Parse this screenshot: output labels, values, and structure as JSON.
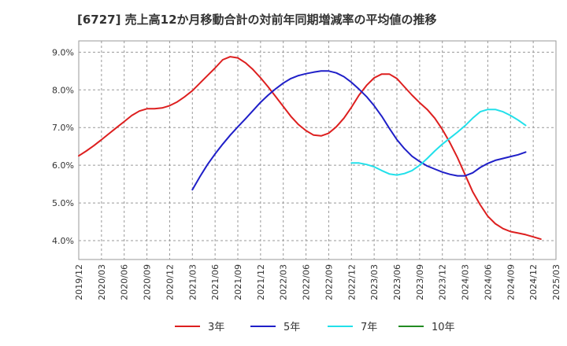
{
  "chart_data": {
    "type": "line",
    "title": "[6727]  売上高12か月移動合計の対前年同期増減率の平均値の推移",
    "xlabel": "",
    "ylabel": "",
    "x_ticks": [
      "2019/12",
      "2020/03",
      "2020/06",
      "2020/09",
      "2020/12",
      "2021/03",
      "2021/06",
      "2021/09",
      "2021/12",
      "2022/03",
      "2022/06",
      "2022/09",
      "2022/12",
      "2023/03",
      "2023/06",
      "2023/09",
      "2023/12",
      "2024/03",
      "2024/06",
      "2024/09",
      "2024/12",
      "2025/03"
    ],
    "y_ticks": [
      "4.0%",
      "5.0%",
      "6.0%",
      "7.0%",
      "8.0%",
      "9.0%"
    ],
    "y_tick_values": [
      4.0,
      5.0,
      6.0,
      7.0,
      8.0,
      9.0
    ],
    "ylim": [
      3.5,
      9.3
    ],
    "grid": true,
    "legend_position": "bottom",
    "series": [
      {
        "name": "3年",
        "color": "#dd1f1f",
        "points": [
          [
            "2019/12",
            6.25
          ],
          [
            "2020/01",
            6.38
          ],
          [
            "2020/02",
            6.52
          ],
          [
            "2020/03",
            6.68
          ],
          [
            "2020/04",
            6.84
          ],
          [
            "2020/05",
            7.0
          ],
          [
            "2020/06",
            7.16
          ],
          [
            "2020/07",
            7.32
          ],
          [
            "2020/08",
            7.44
          ],
          [
            "2020/09",
            7.5
          ],
          [
            "2020/10",
            7.5
          ],
          [
            "2020/11",
            7.52
          ],
          [
            "2020/12",
            7.58
          ],
          [
            "2021/01",
            7.68
          ],
          [
            "2021/02",
            7.82
          ],
          [
            "2021/03",
            7.98
          ],
          [
            "2021/04",
            8.18
          ],
          [
            "2021/05",
            8.38
          ],
          [
            "2021/06",
            8.58
          ],
          [
            "2021/07",
            8.8
          ],
          [
            "2021/08",
            8.88
          ],
          [
            "2021/09",
            8.85
          ],
          [
            "2021/10",
            8.72
          ],
          [
            "2021/11",
            8.54
          ],
          [
            "2021/12",
            8.32
          ],
          [
            "2022/01",
            8.08
          ],
          [
            "2022/02",
            7.82
          ],
          [
            "2022/03",
            7.56
          ],
          [
            "2022/04",
            7.3
          ],
          [
            "2022/05",
            7.08
          ],
          [
            "2022/06",
            6.92
          ],
          [
            "2022/07",
            6.8
          ],
          [
            "2022/08",
            6.78
          ],
          [
            "2022/09",
            6.85
          ],
          [
            "2022/10",
            7.02
          ],
          [
            "2022/11",
            7.25
          ],
          [
            "2022/12",
            7.54
          ],
          [
            "2023/01",
            7.86
          ],
          [
            "2023/02",
            8.12
          ],
          [
            "2023/03",
            8.32
          ],
          [
            "2023/04",
            8.42
          ],
          [
            "2023/05",
            8.42
          ],
          [
            "2023/06",
            8.3
          ],
          [
            "2023/07",
            8.08
          ],
          [
            "2023/08",
            7.86
          ],
          [
            "2023/09",
            7.66
          ],
          [
            "2023/10",
            7.48
          ],
          [
            "2023/11",
            7.25
          ],
          [
            "2023/12",
            6.95
          ],
          [
            "2024/01",
            6.6
          ],
          [
            "2024/02",
            6.2
          ],
          [
            "2024/03",
            5.75
          ],
          [
            "2024/04",
            5.3
          ],
          [
            "2024/05",
            4.95
          ],
          [
            "2024/06",
            4.65
          ],
          [
            "2024/07",
            4.45
          ],
          [
            "2024/08",
            4.32
          ],
          [
            "2024/09",
            4.24
          ],
          [
            "2024/10",
            4.2
          ],
          [
            "2024/11",
            4.16
          ],
          [
            "2024/12",
            4.1
          ],
          [
            "2025/01",
            4.04
          ]
        ]
      },
      {
        "name": "5年",
        "color": "#1f1fc8",
        "points": [
          [
            "2021/03",
            5.35
          ],
          [
            "2021/04",
            5.7
          ],
          [
            "2021/05",
            6.02
          ],
          [
            "2021/06",
            6.3
          ],
          [
            "2021/07",
            6.56
          ],
          [
            "2021/08",
            6.8
          ],
          [
            "2021/09",
            7.02
          ],
          [
            "2021/10",
            7.23
          ],
          [
            "2021/11",
            7.45
          ],
          [
            "2021/12",
            7.67
          ],
          [
            "2022/01",
            7.86
          ],
          [
            "2022/02",
            8.03
          ],
          [
            "2022/03",
            8.18
          ],
          [
            "2022/04",
            8.3
          ],
          [
            "2022/05",
            8.38
          ],
          [
            "2022/06",
            8.43
          ],
          [
            "2022/07",
            8.47
          ],
          [
            "2022/08",
            8.5
          ],
          [
            "2022/09",
            8.5
          ],
          [
            "2022/10",
            8.45
          ],
          [
            "2022/11",
            8.35
          ],
          [
            "2022/12",
            8.2
          ],
          [
            "2023/01",
            8.02
          ],
          [
            "2023/02",
            7.82
          ],
          [
            "2023/03",
            7.58
          ],
          [
            "2023/04",
            7.3
          ],
          [
            "2023/05",
            6.98
          ],
          [
            "2023/06",
            6.68
          ],
          [
            "2023/07",
            6.44
          ],
          [
            "2023/08",
            6.24
          ],
          [
            "2023/09",
            6.1
          ],
          [
            "2023/10",
            5.98
          ],
          [
            "2023/11",
            5.9
          ],
          [
            "2023/12",
            5.82
          ],
          [
            "2024/01",
            5.76
          ],
          [
            "2024/02",
            5.72
          ],
          [
            "2024/03",
            5.72
          ],
          [
            "2024/04",
            5.8
          ],
          [
            "2024/05",
            5.94
          ],
          [
            "2024/06",
            6.05
          ],
          [
            "2024/07",
            6.13
          ],
          [
            "2024/08",
            6.18
          ],
          [
            "2024/09",
            6.23
          ],
          [
            "2024/10",
            6.28
          ],
          [
            "2024/11",
            6.35
          ]
        ]
      },
      {
        "name": "7年",
        "color": "#22e0ea",
        "points": [
          [
            "2022/12",
            6.06
          ],
          [
            "2023/01",
            6.06
          ],
          [
            "2023/02",
            6.02
          ],
          [
            "2023/03",
            5.96
          ],
          [
            "2023/04",
            5.86
          ],
          [
            "2023/05",
            5.77
          ],
          [
            "2023/06",
            5.74
          ],
          [
            "2023/07",
            5.78
          ],
          [
            "2023/08",
            5.86
          ],
          [
            "2023/09",
            6.0
          ],
          [
            "2023/10",
            6.18
          ],
          [
            "2023/11",
            6.38
          ],
          [
            "2023/12",
            6.56
          ],
          [
            "2024/01",
            6.72
          ],
          [
            "2024/02",
            6.88
          ],
          [
            "2024/03",
            7.05
          ],
          [
            "2024/04",
            7.25
          ],
          [
            "2024/05",
            7.42
          ],
          [
            "2024/06",
            7.48
          ],
          [
            "2024/07",
            7.48
          ],
          [
            "2024/08",
            7.42
          ],
          [
            "2024/09",
            7.32
          ],
          [
            "2024/10",
            7.2
          ],
          [
            "2024/11",
            7.06
          ]
        ]
      },
      {
        "name": "10年",
        "color": "#228b22",
        "points": []
      }
    ]
  }
}
